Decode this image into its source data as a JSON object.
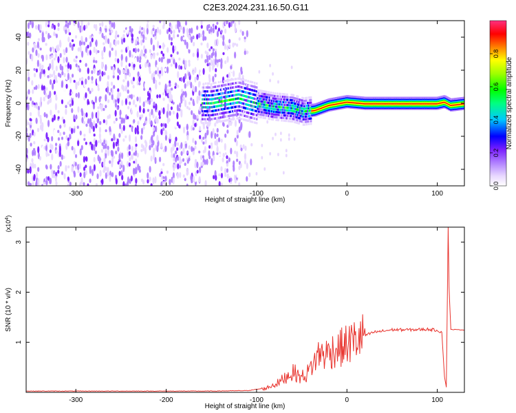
{
  "title": "C2E3.2024.231.16.50.G11",
  "chart_data": [
    {
      "type": "heatmap",
      "title": "C2E3.2024.231.16.50.G11",
      "xlabel": "Height of straight line (km)",
      "ylabel": "Frequency (Hz)",
      "xlim": [
        -355,
        130
      ],
      "ylim": [
        -50,
        50
      ],
      "xticks": [
        -300,
        -200,
        -100,
        0,
        100
      ],
      "yticks": [
        -40,
        -20,
        0,
        20,
        40
      ],
      "colorbar": {
        "label": "Normalized spectral amplitude",
        "range": [
          0,
          1
        ],
        "ticks": [
          0.0,
          0.2,
          0.4,
          0.6,
          0.8
        ],
        "tick_labels": [
          "0.0",
          "0.2",
          "0.4",
          "0.6",
          "0.8"
        ]
      },
      "ridge": {
        "description_points": [
          {
            "x": -150,
            "y": 0
          },
          {
            "x": -120,
            "y": 3
          },
          {
            "x": -100,
            "y": 0
          },
          {
            "x": -80,
            "y": -2
          },
          {
            "x": -60,
            "y": -3
          },
          {
            "x": -48,
            "y": -5
          },
          {
            "x": -35,
            "y": -4
          },
          {
            "x": -20,
            "y": -1
          },
          {
            "x": 0,
            "y": 1
          },
          {
            "x": 20,
            "y": 0
          },
          {
            "x": 100,
            "y": 0
          },
          {
            "x": 108,
            "y": 1
          },
          {
            "x": 115,
            "y": -1
          },
          {
            "x": 130,
            "y": 0
          }
        ]
      }
    },
    {
      "type": "line",
      "xlabel": "Height of straight line (km)",
      "ylabel": "SNR (10 * v/v)",
      "yscale_label": "(x10^4)",
      "xlim": [
        -355,
        130
      ],
      "ylim": [
        0,
        3.3
      ],
      "xticks": [
        -300,
        -200,
        -100,
        0,
        100
      ],
      "yticks": [
        1,
        2,
        3
      ],
      "series": [
        {
          "name": "SNR",
          "color": "#e8322c",
          "points": [
            [
              -355,
              0.02
            ],
            [
              -300,
              0.02
            ],
            [
              -200,
              0.02
            ],
            [
              -150,
              0.02
            ],
            [
              -110,
              0.03
            ],
            [
              -90,
              0.08
            ],
            [
              -75,
              0.2
            ],
            [
              -65,
              0.35
            ],
            [
              -58,
              0.4
            ],
            [
              -52,
              0.3
            ],
            [
              -45,
              0.35
            ],
            [
              -38,
              0.55
            ],
            [
              -30,
              0.8
            ],
            [
              -25,
              0.75
            ],
            [
              -15,
              0.85
            ],
            [
              -5,
              0.9
            ],
            [
              5,
              1.0
            ],
            [
              15,
              1.1
            ],
            [
              30,
              1.2
            ],
            [
              50,
              1.25
            ],
            [
              70,
              1.25
            ],
            [
              90,
              1.26
            ],
            [
              100,
              1.24
            ],
            [
              105,
              1.2
            ],
            [
              108,
              0.3
            ],
            [
              110,
              0.1
            ],
            [
              111,
              1.6
            ],
            [
              112,
              3.3
            ],
            [
              113,
              2.1
            ],
            [
              115,
              1.25
            ],
            [
              120,
              1.25
            ],
            [
              130,
              1.24
            ]
          ]
        }
      ]
    }
  ]
}
